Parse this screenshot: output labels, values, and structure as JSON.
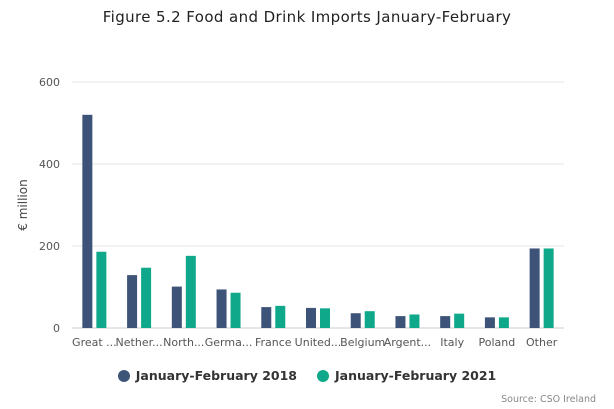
{
  "title": "Figure 5.2 Food and Drink Imports January-February",
  "source": "Source: CSO Ireland",
  "colors": {
    "series1": "#3e5378",
    "series2": "#10a88a",
    "grid": "#e4e4e4",
    "axis": "#cccccc"
  },
  "chart_data": {
    "type": "bar",
    "title": "Figure 5.2 Food and Drink Imports January-February",
    "xlabel": "",
    "ylabel": "€ million",
    "ylim": [
      0,
      600
    ],
    "yticks": [
      0,
      200,
      400,
      600
    ],
    "grid": true,
    "legend": "bottom",
    "categories": [
      "Great ...",
      "Nether...",
      "North...",
      "Germa...",
      "France",
      "United...",
      "Belgium",
      "Argent...",
      "Italy",
      "Poland",
      "Other"
    ],
    "series": [
      {
        "name": "January-February 2018",
        "values": [
          520,
          129,
          101,
          94,
          51,
          49,
          36,
          29,
          29,
          26,
          194
        ]
      },
      {
        "name": "January-February 2021",
        "values": [
          186,
          147,
          176,
          86,
          54,
          48,
          41,
          33,
          35,
          26,
          194
        ]
      }
    ]
  }
}
